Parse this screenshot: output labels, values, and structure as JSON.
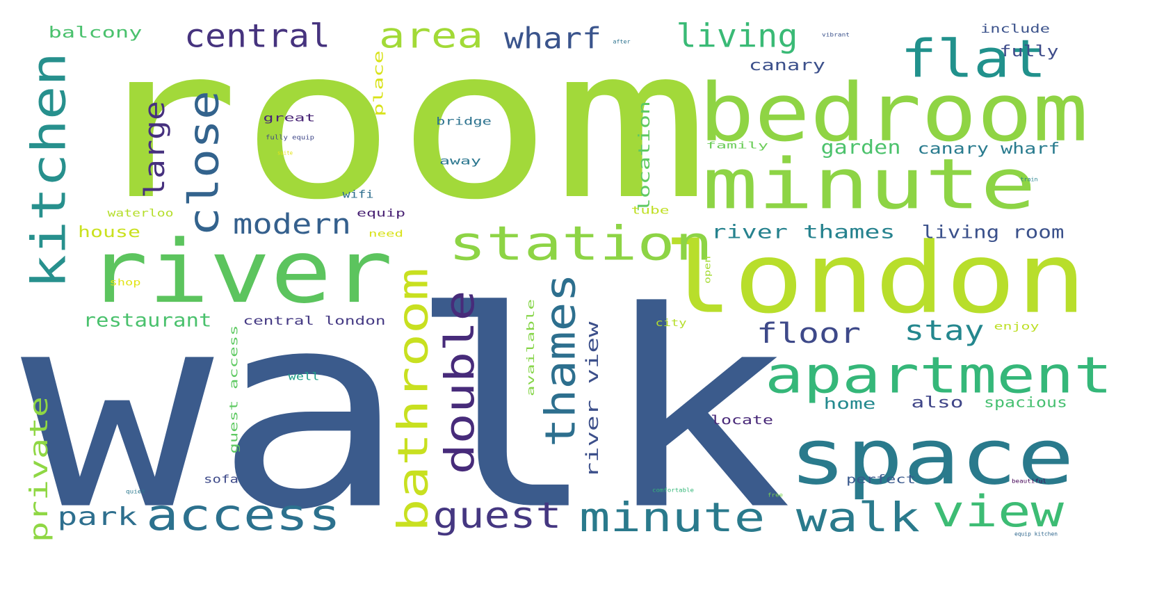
{
  "words": [
    {
      "text": "walk",
      "color": "#3b5b8c"
    },
    {
      "text": "room",
      "color": "#a2d93a"
    },
    {
      "text": "river",
      "color": "#5cc45e"
    },
    {
      "text": "london",
      "color": "#b8de2b"
    },
    {
      "text": "bedroom",
      "color": "#8fd444"
    },
    {
      "text": "minute",
      "color": "#8dd445"
    },
    {
      "text": "space",
      "color": "#2a7a8c"
    },
    {
      "text": "apartment",
      "color": "#35b779"
    },
    {
      "text": "flat",
      "color": "#21918c"
    },
    {
      "text": "station",
      "color": "#8dd445"
    },
    {
      "text": "kitchen",
      "color": "#27908d"
    },
    {
      "text": "close",
      "color": "#33638d"
    },
    {
      "text": "access",
      "color": "#2c718e"
    },
    {
      "text": "minute walk",
      "color": "#2a7a8c"
    },
    {
      "text": "view",
      "color": "#3dbc74"
    },
    {
      "text": "thames",
      "color": "#2d6f8e"
    },
    {
      "text": "bathroom",
      "color": "#c8e020"
    },
    {
      "text": "double",
      "color": "#472b7a"
    },
    {
      "text": "guest",
      "color": "#453781"
    },
    {
      "text": "central",
      "color": "#46337e"
    },
    {
      "text": "area",
      "color": "#a2da37"
    },
    {
      "text": "living",
      "color": "#3aba76"
    },
    {
      "text": "wharf",
      "color": "#3a548c"
    },
    {
      "text": "large",
      "color": "#46307e"
    },
    {
      "text": "modern",
      "color": "#35608d"
    },
    {
      "text": "floor",
      "color": "#3e4989"
    },
    {
      "text": "stay",
      "color": "#24878e"
    },
    {
      "text": "private",
      "color": "#8fd744"
    },
    {
      "text": "park",
      "color": "#2e6f8e"
    },
    {
      "text": "restaurant",
      "color": "#4ac16d"
    },
    {
      "text": "river thames",
      "color": "#26828e"
    },
    {
      "text": "living room",
      "color": "#3b518b"
    },
    {
      "text": "garden",
      "color": "#4cc26c"
    },
    {
      "text": "canary wharf",
      "color": "#297b8e"
    },
    {
      "text": "river view",
      "color": "#3c4f8a"
    },
    {
      "text": "location",
      "color": "#5ec962"
    },
    {
      "text": "balcony",
      "color": "#4ac16d"
    },
    {
      "text": "canary",
      "color": "#3c508b"
    },
    {
      "text": "fully",
      "color": "#3e4c8a"
    },
    {
      "text": "include",
      "color": "#3b528b"
    },
    {
      "text": "house",
      "color": "#cae11f"
    },
    {
      "text": "place",
      "color": "#d8e219"
    },
    {
      "text": "home",
      "color": "#23898e"
    },
    {
      "text": "also",
      "color": "#404688"
    },
    {
      "text": "spacious",
      "color": "#45bf70"
    },
    {
      "text": "locate",
      "color": "#482878"
    },
    {
      "text": "perfect",
      "color": "#38588c"
    },
    {
      "text": "central london",
      "color": "#443983"
    },
    {
      "text": "guest access",
      "color": "#5ec962"
    },
    {
      "text": "available",
      "color": "#86d549"
    },
    {
      "text": "sofa",
      "color": "#3e4a89"
    },
    {
      "text": "well",
      "color": "#1f9e89"
    },
    {
      "text": "great",
      "color": "#482475"
    },
    {
      "text": "bridge",
      "color": "#2c728e"
    },
    {
      "text": "away",
      "color": "#2a768e"
    },
    {
      "text": "wifi",
      "color": "#2e6e8e"
    },
    {
      "text": "equip",
      "color": "#482173"
    },
    {
      "text": "waterloo",
      "color": "#b5de2b"
    },
    {
      "text": "need",
      "color": "#d8e219"
    },
    {
      "text": "tube",
      "color": "#c0df25"
    },
    {
      "text": "open",
      "color": "#a5db36"
    },
    {
      "text": "city",
      "color": "#b5de2b"
    },
    {
      "text": "enjoy",
      "color": "#bddf26"
    },
    {
      "text": "shop",
      "color": "#e2e418"
    },
    {
      "text": "family",
      "color": "#6ccd5a"
    },
    {
      "text": "fully equip",
      "color": "#3f4788"
    },
    {
      "text": "suite",
      "color": "#e5e419"
    },
    {
      "text": "after",
      "color": "#2c728e"
    },
    {
      "text": "vibrant",
      "color": "#3b528b"
    },
    {
      "text": "train",
      "color": "#25838e"
    },
    {
      "text": "quiet",
      "color": "#2a788e"
    },
    {
      "text": "comfortable",
      "color": "#35b779"
    },
    {
      "text": "free",
      "color": "#7ad151"
    },
    {
      "text": "beautiful",
      "color": "#450457"
    },
    {
      "text": "equip kitchen",
      "color": "#31688e"
    }
  ]
}
